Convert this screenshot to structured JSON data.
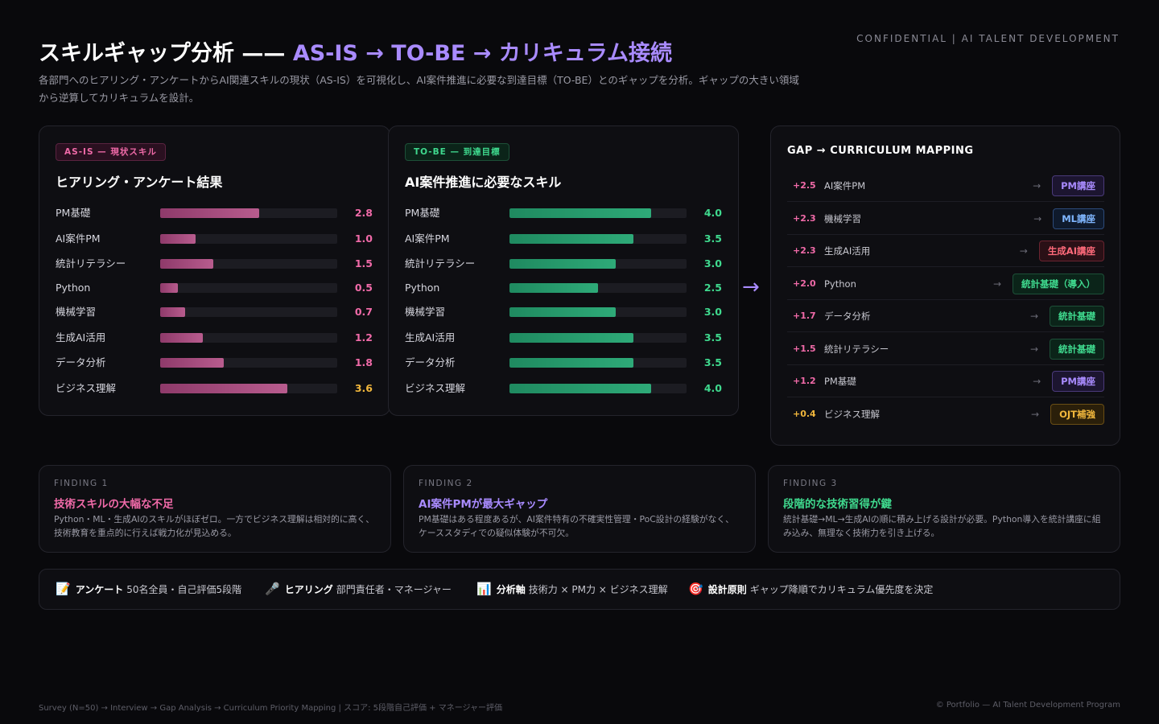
{
  "header": {
    "confidential": "CONFIDENTIAL | AI TALENT DEVELOPMENT",
    "title_main": "スキルギャップ分析 —— ",
    "title_accent": "AS-IS → TO-BE → カリキュラム接続",
    "subtitle": "各部門へのヒアリング・アンケートからAI関連スキルの現状（AS-IS）を可視化し、AI案件推進に必要な到達目標（TO-BE）とのギャップを分析。ギャップの大きい領域から逆算してカリキュラムを設計。"
  },
  "colors": {
    "pink": "#f06aa8",
    "gold": "#f0b63c",
    "green": "#3fd98e",
    "purple": "#a98bff"
  },
  "chart_data": [
    {
      "type": "bar",
      "orientation": "horizontal",
      "tag": "AS-IS — 現状スキル",
      "title": "ヒアリング・アンケート結果",
      "xlim": [
        0,
        5
      ],
      "categories": [
        "PM基礎",
        "AI案件PM",
        "統計リテラシー",
        "Python",
        "機械学習",
        "生成AI活用",
        "データ分析",
        "ビジネス理解"
      ],
      "values": [
        2.8,
        1.0,
        1.5,
        0.5,
        0.7,
        1.2,
        1.8,
        3.6
      ],
      "value_labels": [
        "2.8",
        "1.0",
        "1.5",
        "0.5",
        "0.7",
        "1.2",
        "1.8",
        "3.6"
      ],
      "highlight_index": 7
    },
    {
      "type": "bar",
      "orientation": "horizontal",
      "tag": "TO-BE — 到達目標",
      "title": "AI案件推進に必要なスキル",
      "xlim": [
        0,
        5
      ],
      "categories": [
        "PM基礎",
        "AI案件PM",
        "統計リテラシー",
        "Python",
        "機械学習",
        "生成AI活用",
        "データ分析",
        "ビジネス理解"
      ],
      "values": [
        4.0,
        3.5,
        3.0,
        2.5,
        3.0,
        3.5,
        3.5,
        4.0
      ],
      "value_labels": [
        "4.0",
        "3.5",
        "3.0",
        "2.5",
        "3.0",
        "3.5",
        "3.5",
        "4.0"
      ]
    }
  ],
  "gap_mapping": {
    "title": "GAP → CURRICULUM MAPPING",
    "arrow": "→",
    "rows": [
      {
        "delta": "+2.5",
        "skill": "AI案件PM",
        "course": "PM講座",
        "color": "#a98bff",
        "bg": "#1c1530",
        "border": "#4a3a7a"
      },
      {
        "delta": "+2.3",
        "skill": "機械学習",
        "course": "ML講座",
        "color": "#7fb6ff",
        "bg": "#0f1a2c",
        "border": "#2c4a7a"
      },
      {
        "delta": "+2.3",
        "skill": "生成AI活用",
        "course": "生成AI講座",
        "color": "#ff6a7a",
        "bg": "#2a1016",
        "border": "#6a2430"
      },
      {
        "delta": "+2.0",
        "skill": "Python",
        "course": "統計基礎（導入）",
        "color": "#3fd98e",
        "bg": "#0b2419",
        "border": "#1d5038"
      },
      {
        "delta": "+1.7",
        "skill": "データ分析",
        "course": "統計基礎",
        "color": "#3fd98e",
        "bg": "#0b2419",
        "border": "#1d5038"
      },
      {
        "delta": "+1.5",
        "skill": "統計リテラシー",
        "course": "統計基礎",
        "color": "#3fd98e",
        "bg": "#0b2419",
        "border": "#1d5038"
      },
      {
        "delta": "+1.2",
        "skill": "PM基礎",
        "course": "PM講座",
        "color": "#a98bff",
        "bg": "#1c1530",
        "border": "#4a3a7a"
      },
      {
        "delta": "+0.4",
        "skill": "ビジネス理解",
        "course": "OJT補強",
        "color": "#f0b63c",
        "bg": "#2a1f0a",
        "border": "#6a4e14"
      }
    ]
  },
  "findings": [
    {
      "label": "FINDING 1",
      "title": "技術スキルの大幅な不足",
      "color": "#f06aa8",
      "body": "Python・ML・生成AIのスキルがほぼゼロ。一方でビジネス理解は相対的に高く、技術教育を重点的に行えば戦力化が見込める。"
    },
    {
      "label": "FINDING 2",
      "title": "AI案件PMが最大ギャップ",
      "color": "#a98bff",
      "body": "PM基礎はある程度あるが、AI案件特有の不確実性管理・PoC設計の経験がなく、ケーススタディでの疑似体験が不可欠。"
    },
    {
      "label": "FINDING 3",
      "title": "段階的な技術習得が鍵",
      "color": "#3fd98e",
      "body": "統計基礎→ML→生成AIの順に積み上げる設計が必要。Python導入を統計講座に組み込み、無理なく技術力を引き上げる。"
    }
  ],
  "meta": [
    {
      "icon": "📝",
      "icon_name": "memo-icon",
      "key": "アンケート",
      "value": "50名全員・自己評価5段階"
    },
    {
      "icon": "🎤",
      "icon_name": "microphone-icon",
      "key": "ヒアリング",
      "value": "部門責任者・マネージャー"
    },
    {
      "icon": "📊",
      "icon_name": "bar-chart-icon",
      "key": "分析軸",
      "value": "技術力 × PM力 × ビジネス理解"
    },
    {
      "icon": "🎯",
      "icon_name": "target-icon",
      "key": "設計原則",
      "value": "ギャップ降順でカリキュラム優先度を決定"
    }
  ],
  "footer": {
    "left": "Survey (N=50) → Interview → Gap Analysis → Curriculum Priority Mapping | スコア: 5段階自己評価 + マネージャー評価",
    "right": "© Portfolio — AI Talent Development Program"
  },
  "mid_arrow": "→"
}
